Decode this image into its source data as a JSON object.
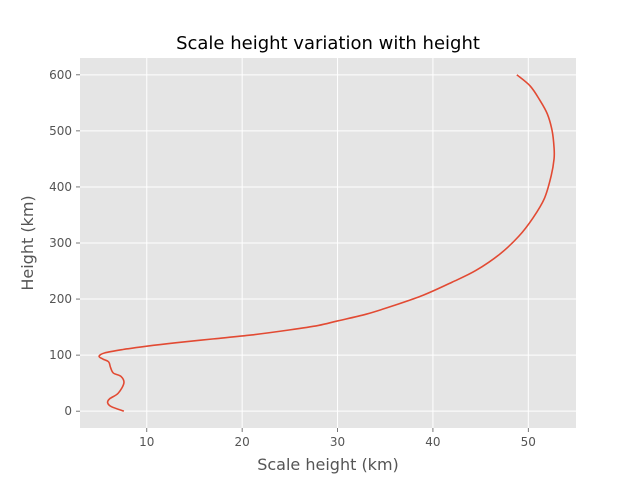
{
  "chart_data": {
    "type": "line",
    "title": "Scale height variation with height",
    "xlabel": "Scale height (km)",
    "ylabel": "Height (km)",
    "xlim": [
      3,
      55
    ],
    "ylim": [
      -30,
      630
    ],
    "xticks": [
      10,
      20,
      30,
      40,
      50
    ],
    "yticks": [
      0,
      100,
      200,
      300,
      400,
      500,
      600
    ],
    "grid": true,
    "colors": {
      "background": "#e5e5e5",
      "grid": "#ffffff",
      "line": "#e24a33"
    },
    "series": [
      {
        "x": [
          7.6,
          6.3,
          5.9,
          6.1,
          7.0,
          7.6,
          7.3,
          6.5,
          6.2,
          6.0,
          5.4,
          5.0,
          5.6,
          7.5,
          10,
          13,
          17,
          21,
          25,
          28,
          30,
          33,
          36,
          39,
          42,
          44.5,
          47,
          49,
          50.5,
          51.7,
          52.4,
          52.7,
          52.7,
          52.5,
          52.0,
          51.2,
          50.2,
          48.8
        ],
        "y": [
          0,
          8,
          15,
          22,
          32,
          50,
          62,
          68,
          78,
          88,
          93,
          98,
          104,
          110,
          116,
          122,
          129,
          136,
          145,
          153,
          161,
          173,
          189,
          207,
          230,
          251,
          280,
          312,
          345,
          380,
          420,
          450,
          470,
          500,
          530,
          555,
          580,
          600
        ]
      }
    ]
  }
}
